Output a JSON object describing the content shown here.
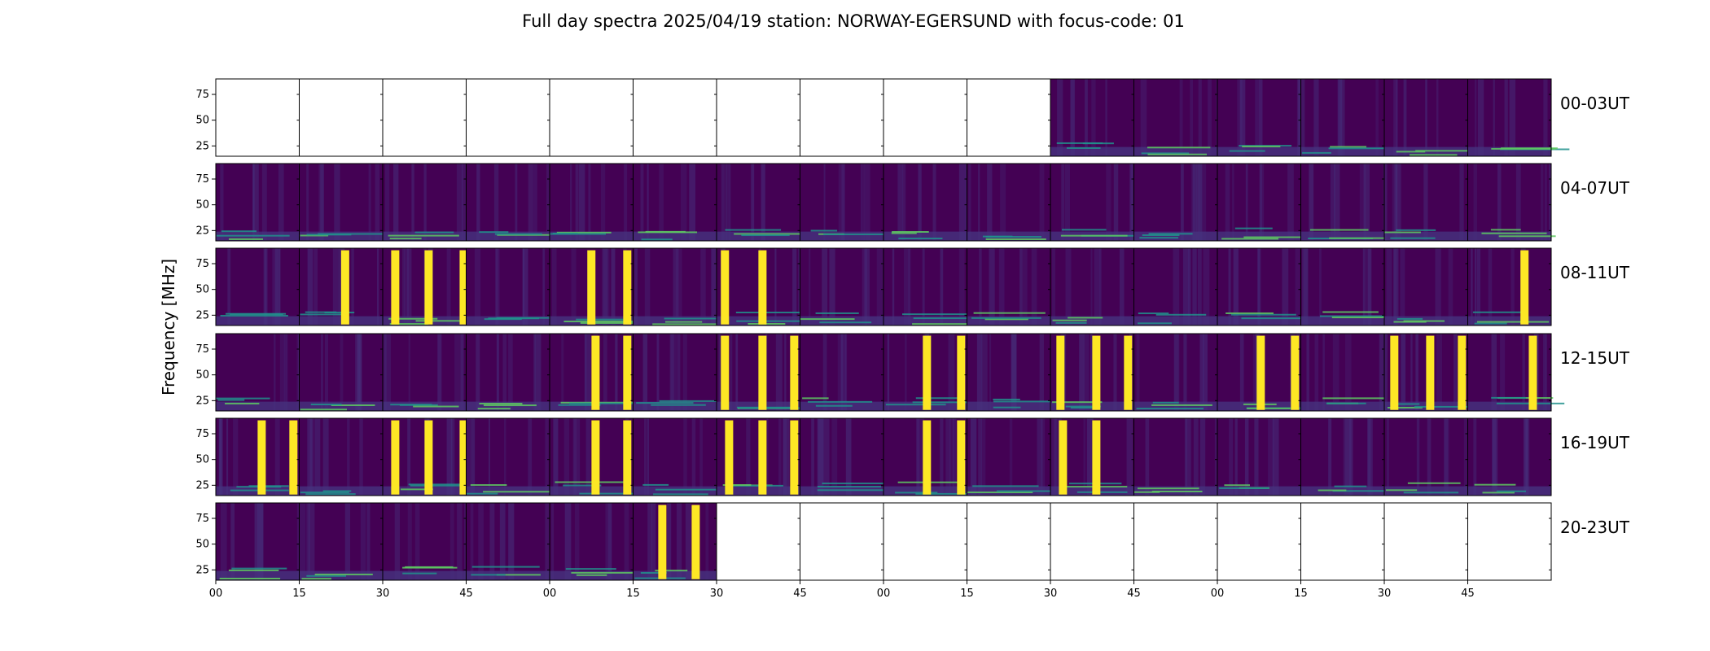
{
  "chart_data": {
    "type": "heatmap",
    "title": "Full day spectra 2025/04/19 station: NORWAY-EGERSUND with focus-code: 01",
    "ylabel": "Frequency [MHz]",
    "xlabel": "",
    "colormap": "viridis",
    "colors": {
      "background": "#440154",
      "low": "#46327e",
      "mid": "#21918c",
      "high": "#5ec962",
      "saturated": "#fde725",
      "empty_panel": "#ffffff"
    },
    "y_ticks": [
      "25",
      "50",
      "75"
    ],
    "y_tick_values": [
      25,
      50,
      75
    ],
    "ylim": [
      15,
      90
    ],
    "x_ticks": [
      "00",
      "15",
      "30",
      "45",
      "00",
      "15",
      "30",
      "45",
      "00",
      "15",
      "30",
      "45",
      "00",
      "15",
      "30",
      "45"
    ],
    "x_tick_minutes": [
      0,
      15,
      30,
      45,
      60,
      75,
      90,
      105,
      120,
      135,
      150,
      165,
      180,
      195,
      210,
      225
    ],
    "xlim_minutes": [
      0,
      240
    ],
    "panel_minutes": 15,
    "rows": [
      {
        "label": "00-03UT",
        "data_panels": [
          false,
          false,
          false,
          false,
          false,
          false,
          false,
          false,
          false,
          false,
          true,
          true,
          true,
          true,
          true,
          true
        ],
        "bursts": [
          [],
          [],
          [],
          [],
          [],
          [],
          [],
          [],
          [],
          [],
          [],
          [],
          [],
          [],
          [],
          []
        ]
      },
      {
        "label": "04-07UT",
        "data_panels": [
          true,
          true,
          true,
          true,
          true,
          true,
          true,
          true,
          true,
          true,
          true,
          true,
          true,
          true,
          true,
          true
        ],
        "bursts": [
          [],
          [],
          [],
          [],
          [],
          [],
          [],
          [],
          [],
          [],
          [],
          [],
          [],
          [],
          [],
          []
        ]
      },
      {
        "label": "08-11UT",
        "data_panels": [
          true,
          true,
          true,
          true,
          true,
          true,
          true,
          true,
          true,
          true,
          true,
          true,
          true,
          true,
          true,
          true
        ],
        "bursts": [
          [],
          [
            0.55
          ],
          [
            0.15,
            0.55,
            0.97
          ],
          [],
          [
            0.5,
            0.93
          ],
          [],
          [
            0.1,
            0.55
          ],
          [],
          [],
          [],
          [],
          [],
          [],
          [],
          [],
          [
            0.68
          ]
        ]
      },
      {
        "label": "12-15UT",
        "data_panels": [
          true,
          true,
          true,
          true,
          true,
          true,
          true,
          true,
          true,
          true,
          true,
          true,
          true,
          true,
          true,
          true
        ],
        "bursts": [
          [],
          [],
          [],
          [],
          [
            0.55,
            0.93
          ],
          [],
          [
            0.1,
            0.55,
            0.93
          ],
          [],
          [
            0.52,
            0.93
          ],
          [],
          [
            0.12,
            0.55,
            0.93
          ],
          [],
          [
            0.52,
            0.93
          ],
          [],
          [
            0.12,
            0.55,
            0.93
          ],
          [
            0.78
          ]
        ]
      },
      {
        "label": "16-19UT",
        "data_panels": [
          true,
          true,
          true,
          true,
          true,
          true,
          true,
          true,
          true,
          true,
          true,
          true,
          true,
          true,
          true,
          true
        ],
        "bursts": [
          [
            0.55,
            0.93
          ],
          [],
          [
            0.15,
            0.55,
            0.97
          ],
          [],
          [
            0.55,
            0.93
          ],
          [],
          [
            0.15,
            0.55,
            0.93
          ],
          [],
          [
            0.52,
            0.93
          ],
          [],
          [
            0.15,
            0.55
          ],
          [],
          [],
          [],
          [],
          []
        ]
      },
      {
        "label": "20-23UT",
        "data_panels": [
          true,
          true,
          true,
          true,
          true,
          true,
          false,
          false,
          false,
          false,
          false,
          false,
          false,
          false,
          false,
          false
        ],
        "bursts": [
          [],
          [],
          [],
          [],
          [],
          [
            0.35,
            0.75
          ],
          [],
          [],
          [],
          [],
          [],
          [],
          [],
          [],
          [],
          []
        ]
      }
    ]
  }
}
